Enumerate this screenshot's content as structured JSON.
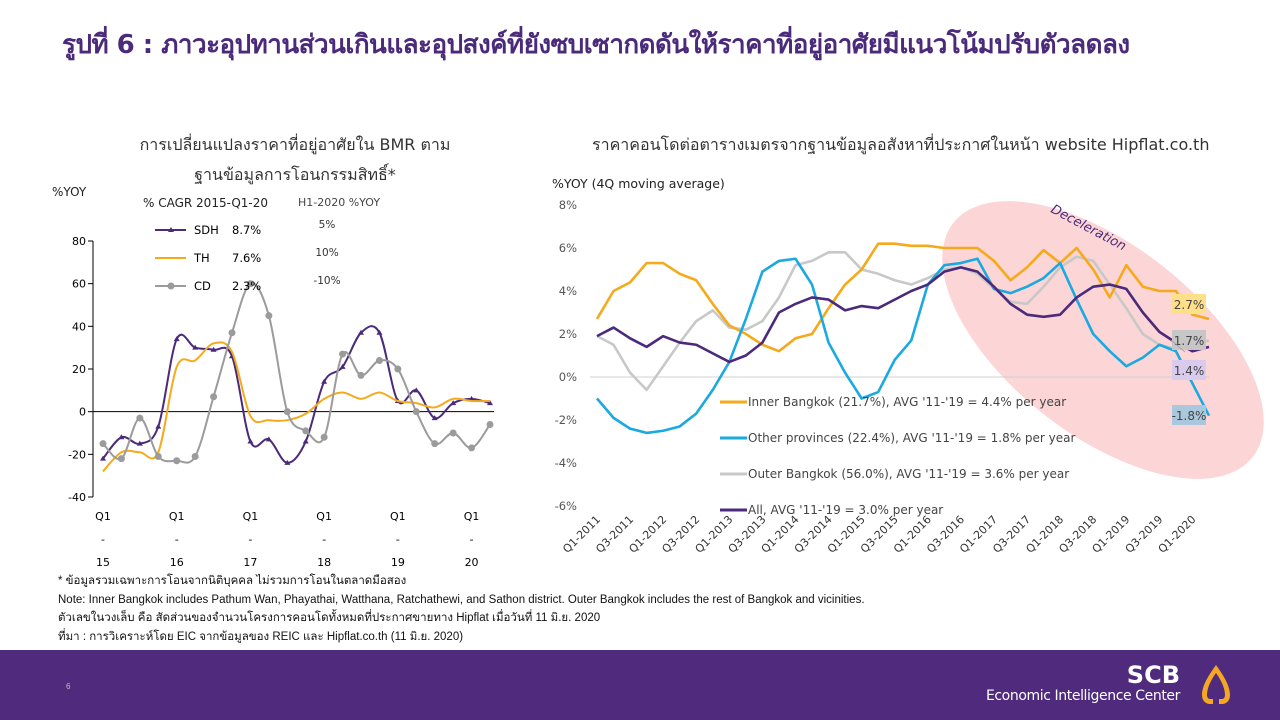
{
  "slide": {
    "title": "รูปที่ 6 : ภาวะอุปทานส่วนเกินและอุปสงค์ที่ยังซบเซากดดันให้ราคาที่อยู่อาศัยมีแนวโน้มปรับตัวลดลง",
    "page_number": "6",
    "brand_name": "SCB",
    "brand_sub": "Economic Intelligence Center",
    "colors": {
      "brand_purple": "#4f2a7d",
      "accent_gold": "#f5a623"
    }
  },
  "notes": [
    "* ข้อมูลรวมเฉพาะการโอนจากนิติบุคคล ไม่รวมการโอนในตลาดมือสอง",
    "Note: Inner Bangkok includes Pathum Wan, Phayathai, Watthana, Ratchathewi, and Sathon district. Outer Bangkok includes the rest of Bangkok and vicinities.",
    "ตัวเลขในวงเล็บ คือ สัดส่วนของจำนวนโครงการคอนโดทั้งหมดที่ประกาศขายทาง Hipflat เมื่อวันที่ 11 มิ.ย. 2020",
    "ที่มา : การวิเคราะห์โดย EIC จากข้อมูลของ REIC และ Hipflat.co.th (11 มิ.ย. 2020)"
  ],
  "chart_data": [
    {
      "type": "line",
      "title": "การเปลี่ยนแปลงราคาที่อยู่อาศัยใน BMR ตาม ฐานข้อมูลการโอนกรรมสิทธิ์*",
      "title_line1": "การเปลี่ยนแปลงราคาที่อยู่อาศัยใน BMR ตาม",
      "title_line2": "ฐานข้อมูลการโอนกรรมสิทธิ์*",
      "ylabel": "%YOY",
      "xlabel": "",
      "ylim": [
        -40,
        80
      ],
      "yticks": [
        "80",
        "60",
        "40",
        "20",
        "0",
        "-20",
        "-40"
      ],
      "ytick_values": [
        80,
        60,
        40,
        20,
        0,
        -20,
        -40
      ],
      "xtick_labels": [
        {
          "q": "Q1",
          "d": "-",
          "y": "15"
        },
        {
          "q": "Q1",
          "d": "-",
          "y": "16"
        },
        {
          "q": "Q1",
          "d": "-",
          "y": "17"
        },
        {
          "q": "Q1",
          "d": "-",
          "y": "18"
        },
        {
          "q": "Q1",
          "d": "-",
          "y": "19"
        },
        {
          "q": "Q1",
          "d": "-",
          "y": "20"
        }
      ],
      "legend_header_cagr": "% CAGR 2015-Q1-20",
      "legend_header_h1": "H1-2020 %YOY",
      "legend_placement": "top-center",
      "x": [
        "Q1-15",
        "Q2-15",
        "Q3-15",
        "Q4-15",
        "Q1-16",
        "Q2-16",
        "Q3-16",
        "Q4-16",
        "Q1-17",
        "Q2-17",
        "Q3-17",
        "Q4-17",
        "Q1-18",
        "Q2-18",
        "Q3-18",
        "Q4-18",
        "Q1-19",
        "Q2-19",
        "Q3-19",
        "Q4-19",
        "Q1-20",
        "Q2-20"
      ],
      "series": [
        {
          "name": "SDH",
          "cagr": "8.7%",
          "h1": "5%",
          "color": "#4b2a7b",
          "marker": "triangle",
          "values": [
            -22,
            -12,
            -15,
            -7,
            34,
            30,
            29,
            26,
            -14,
            -13,
            -24,
            -14,
            14,
            21,
            37,
            37,
            5,
            10,
            -3,
            4,
            6,
            4
          ]
        },
        {
          "name": "TH",
          "cagr": "7.6%",
          "h1": "10%",
          "color": "#f5aa1c",
          "marker": "none",
          "values": [
            -28,
            -19,
            -19,
            -19,
            21,
            24,
            32,
            28,
            -2,
            -4,
            -4,
            -1,
            6,
            9,
            6,
            9,
            5,
            4,
            2,
            6,
            5,
            5
          ]
        },
        {
          "name": "CD",
          "cagr": "2.3%",
          "h1": "-10%",
          "color": "#9b9b9b",
          "marker": "circle",
          "values": [
            -15,
            -22,
            -3,
            -21,
            -23,
            -21,
            7,
            37,
            60,
            45,
            0,
            -9,
            -12,
            27,
            17,
            24,
            20,
            0,
            -15,
            -10,
            -17,
            -6
          ]
        }
      ]
    },
    {
      "type": "line",
      "title": "ราคาคอนโดต่อตารางเมตรจากฐานข้อมูลอสังหาที่ประกาศในหน้า website Hipflat.co.th",
      "ylabel": "%YOY (4Q moving average)",
      "ylim": [
        -6,
        8
      ],
      "yticks": [
        "8%",
        "6%",
        "4%",
        "2%",
        "0%",
        "-2%",
        "-4%",
        "-6%"
      ],
      "ytick_values": [
        8,
        6,
        4,
        2,
        0,
        -2,
        -4,
        -6
      ],
      "xtick_labels": [
        "Q1-2011",
        "Q3-2011",
        "Q1-2012",
        "Q3-2012",
        "Q1-2013",
        "Q3-2013",
        "Q1-2014",
        "Q3-2014",
        "Q1-2015",
        "Q3-2015",
        "Q1-2016",
        "Q3-2016",
        "Q1-2017",
        "Q3-2017",
        "Q1-2018",
        "Q3-2018",
        "Q1-2019",
        "Q3-2019",
        "Q1-2020"
      ],
      "annotation": "Deceleration",
      "legend_placement": "bottom-center",
      "series": [
        {
          "name": "Inner Bangkok (21.7%), AVG '11-'19 = 4.4% per year",
          "color": "#f5aa1c",
          "end_label": "2.7%",
          "end_label_bg": "#ffe08a",
          "values": [
            2.7,
            4.0,
            4.4,
            5.3,
            5.3,
            4.8,
            4.5,
            3.4,
            2.4,
            2.0,
            1.5,
            1.2,
            1.8,
            2.0,
            3.2,
            4.3,
            5.0,
            6.2,
            6.2,
            6.1,
            6.1,
            6.0,
            6.0,
            6.0,
            5.4,
            4.5,
            5.1,
            5.9,
            5.3,
            6.0,
            5.0,
            3.7,
            5.2,
            4.2,
            4.0,
            4.0,
            2.9,
            2.7
          ]
        },
        {
          "name": "Other provinces (22.4%), AVG '11-'19 = 1.8% per year",
          "color": "#1ba9e1",
          "end_label": "-1.8%",
          "end_label_bg": "#a9c8dd",
          "values": [
            -1.0,
            -1.9,
            -2.4,
            -2.6,
            -2.5,
            -2.3,
            -1.7,
            -0.6,
            0.7,
            2.7,
            4.9,
            5.4,
            5.5,
            4.3,
            1.6,
            0.2,
            -1.0,
            -0.7,
            0.8,
            1.7,
            4.3,
            5.2,
            5.3,
            5.5,
            4.1,
            3.9,
            4.2,
            4.6,
            5.3,
            3.6,
            2.0,
            1.2,
            0.5,
            0.9,
            1.5,
            1.2,
            -0.3,
            -1.8
          ]
        },
        {
          "name": "Outer Bangkok (56.0%), AVG '11-'19 = 3.6% per year",
          "color": "#c8c8c8",
          "end_label": "1.7%",
          "end_label_bg": "#c6c6c6",
          "values": [
            1.9,
            1.5,
            0.2,
            -0.6,
            0.5,
            1.6,
            2.6,
            3.1,
            2.3,
            2.2,
            2.6,
            3.7,
            5.2,
            5.4,
            5.8,
            5.8,
            5.0,
            4.8,
            4.5,
            4.3,
            4.6,
            5.0,
            5.1,
            4.8,
            4.1,
            3.5,
            3.4,
            4.2,
            5.1,
            5.6,
            5.4,
            4.3,
            3.2,
            2.0,
            1.5,
            1.3,
            1.5,
            1.7
          ]
        },
        {
          "name": "All, AVG '11-'19 = 3.0% per year",
          "color": "#4b2a7b",
          "end_label": "1.4%",
          "end_label_bg": "#d9cbee",
          "values": [
            1.9,
            2.3,
            1.8,
            1.4,
            1.9,
            1.6,
            1.5,
            1.1,
            0.7,
            1.0,
            1.6,
            3.0,
            3.4,
            3.7,
            3.6,
            3.1,
            3.3,
            3.2,
            3.6,
            4.0,
            4.3,
            4.9,
            5.1,
            4.9,
            4.2,
            3.4,
            2.9,
            2.8,
            2.9,
            3.7,
            4.2,
            4.3,
            4.1,
            3.0,
            2.1,
            1.6,
            1.2,
            1.4
          ]
        }
      ]
    }
  ]
}
